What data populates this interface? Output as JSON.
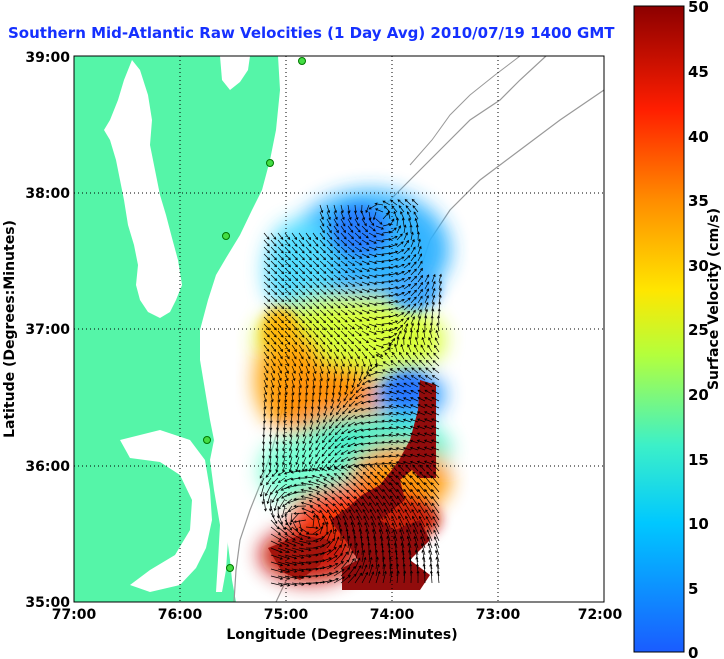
{
  "title": "Southern Mid-Atlantic Raw Velocities (1 Day Avg) 2010/07/19 1400 GMT",
  "xlabel": "Longitude (Degrees:Minutes)",
  "ylabel": "Latitude (Degrees:Minutes)",
  "x_ticks": [
    "77:00",
    "76:00",
    "75:00",
    "74:00",
    "73:00",
    "72:00"
  ],
  "y_ticks": [
    "39:00",
    "38:00",
    "37:00",
    "36:00",
    "35:00"
  ],
  "colorbar": {
    "label": "Surface Velocity (cm/s)",
    "ticks": [
      "0",
      "5",
      "10",
      "15",
      "20",
      "25",
      "30",
      "35",
      "40",
      "45",
      "50"
    ],
    "range": [
      0,
      50
    ],
    "colors": [
      "#1a5cff",
      "#00c8ff",
      "#3cf0c8",
      "#b4ff3c",
      "#ffe600",
      "#ff8c00",
      "#ff1e00",
      "#8c0000"
    ]
  },
  "colors": {
    "land": "#55f5a8",
    "water": "#ffffff",
    "arrow": "#000000",
    "grid": "#000000",
    "stations": "#44dd44"
  },
  "chart_data": {
    "type": "heatmap",
    "xlim": [
      -77,
      -72
    ],
    "ylim": [
      35,
      39
    ],
    "variable": "surface current speed (cm/s)",
    "regions": [
      {
        "area": "NE offshore near 37.5N 74.5W",
        "speed": 8
      },
      {
        "area": "central shelf near 36.9N 74.7W",
        "speed": 22
      },
      {
        "area": "near Virginia coast 36.6N 75.5W",
        "speed": 32
      },
      {
        "area": "eddy near 36.5N 74.2W",
        "speed": 10
      },
      {
        "area": "Gulf Stream edge 35.5N 74.5W",
        "speed": 48
      }
    ]
  }
}
